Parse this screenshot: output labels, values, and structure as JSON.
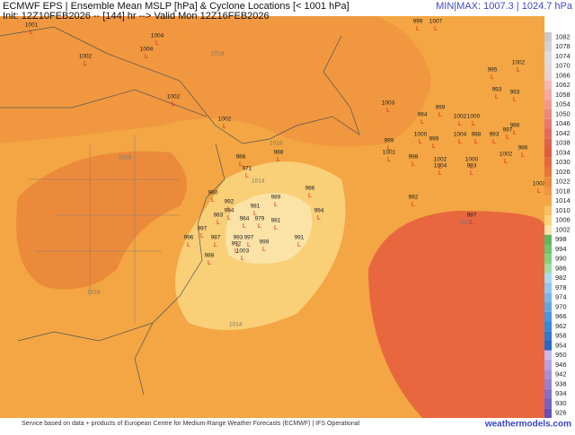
{
  "header": {
    "title": "ECMWF EPS | Ensemble Mean MSLP [hPa] & Cyclone Locations [< 1001 hPa]",
    "init": "Init: 12Z10FEB2026 -- [144] hr --> Valid Mon 12Z16FEB2026",
    "minmax": "MIN|MAX: 1007.3 | 1024.7 hPa"
  },
  "contour_labels": [
    "1018",
    "1018",
    "1018",
    "1014",
    "1014",
    "1022",
    "1018"
  ],
  "cyclones": [
    "1001",
    "1004",
    "1004",
    "1002",
    "1002",
    "1002",
    "988",
    "971",
    "988",
    "986",
    "980",
    "999",
    "1007",
    "1002",
    "995",
    "993",
    "993",
    "1003",
    "994",
    "999",
    "1002",
    "1000",
    "997",
    "986",
    "999",
    "1000",
    "999",
    "1004",
    "988",
    "993",
    "986",
    "1001",
    "998",
    "1002",
    "1004",
    "1000",
    "993",
    "1002",
    "1003",
    "992",
    "997",
    "989",
    "981",
    "994",
    "981",
    "984",
    "979",
    "992",
    "983",
    "994",
    "997",
    "987",
    "991",
    "999",
    "997",
    "993",
    "992",
    "1003",
    "996",
    "988"
  ],
  "colorbar": [
    "1082",
    "1078",
    "1074",
    "1070",
    "1066",
    "1062",
    "1058",
    "1054",
    "1050",
    "1046",
    "1042",
    "1038",
    "1034",
    "1030",
    "1026",
    "1022",
    "1018",
    "1014",
    "1010",
    "1006",
    "1002",
    "998",
    "994",
    "990",
    "986",
    "982",
    "978",
    "974",
    "970",
    "966",
    "962",
    "958",
    "954",
    "950",
    "946",
    "942",
    "938",
    "934",
    "930",
    "926"
  ],
  "footer": {
    "credit": "Service based on data + products of European Centre for Medium-Range Weather Forecasts (ECMWF) | IFS Operational",
    "brand": "weathermodels.com"
  }
}
